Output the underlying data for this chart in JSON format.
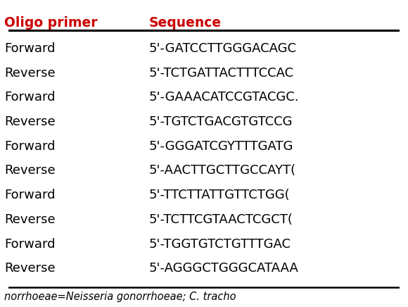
{
  "headers": [
    "Oligo primer",
    "Sequence"
  ],
  "header_color": "#cc0000",
  "rows": [
    [
      "Forward",
      "5'-GATCCTTGGGACAGC"
    ],
    [
      "Reverse",
      "5'-TCTGATTACTTTCCAC"
    ],
    [
      "Forward",
      "5'-GAAACATCCGTACGC."
    ],
    [
      "Reverse",
      "5'-TGTCTGACGTGTCCG"
    ],
    [
      "Forward",
      "5'-GGGATCGYTTTGATG"
    ],
    [
      "Reverse",
      "5'-AACTTGCTTGCCAYT("
    ],
    [
      "Forward",
      "5'-TTCTTATTGTTCTGG("
    ],
    [
      "Reverse",
      "5'-TCTTCGTAACTCGCT("
    ],
    [
      "Forward",
      "5'-TGGTGTCTGTTTGAC"
    ],
    [
      "Reverse",
      "5'-AGGGCTGGGCATAAA"
    ]
  ],
  "footnote": "norrhoeae=Neisseria gonorrhoeae; C. tracho",
  "bg_color": "#ffffff",
  "text_color": "#000000",
  "header_fontsize": 13.5,
  "row_fontsize": 13.0,
  "footnote_fontsize": 10.5
}
